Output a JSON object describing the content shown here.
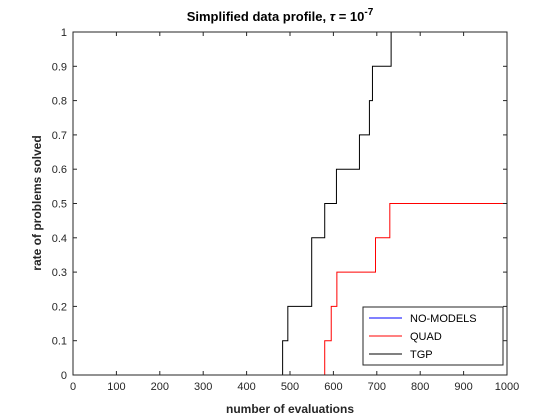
{
  "chart_data": {
    "type": "line",
    "step": true,
    "title": {
      "prefix": "Simplified data profile, ",
      "symbol": "τ",
      "middle": " = 10",
      "exponent": "-7"
    },
    "xlabel": "number of evaluations",
    "ylabel": "rate of problems solved",
    "xlim": [
      0,
      1000
    ],
    "ylim": [
      0,
      1
    ],
    "xticks": [
      0,
      100,
      200,
      300,
      400,
      500,
      600,
      700,
      800,
      900,
      1000
    ],
    "yticks": [
      0,
      0.1,
      0.2,
      0.3,
      0.4,
      0.5,
      0.6,
      0.7,
      0.8,
      0.9,
      1
    ],
    "grid": false,
    "legend_position": "bottom-right",
    "series": [
      {
        "name": "NO-MODELS",
        "color": "#0000ff",
        "x": [
          0,
          1000
        ],
        "y": [
          0,
          0
        ]
      },
      {
        "name": "QUAD",
        "color": "#ff0000",
        "x": [
          0,
          580,
          595,
          608,
          697,
          730,
          1000
        ],
        "y": [
          0,
          0.1,
          0.2,
          0.3,
          0.4,
          0.5,
          0.5
        ]
      },
      {
        "name": "TGP",
        "color": "#000000",
        "x": [
          0,
          483,
          495,
          550,
          580,
          590,
          607,
          660,
          683,
          690,
          733,
          1000
        ],
        "y": [
          0,
          0.1,
          0.2,
          0.4,
          0.5,
          0.5,
          0.6,
          0.7,
          0.8,
          0.9,
          1.0,
          1.0
        ]
      }
    ]
  }
}
